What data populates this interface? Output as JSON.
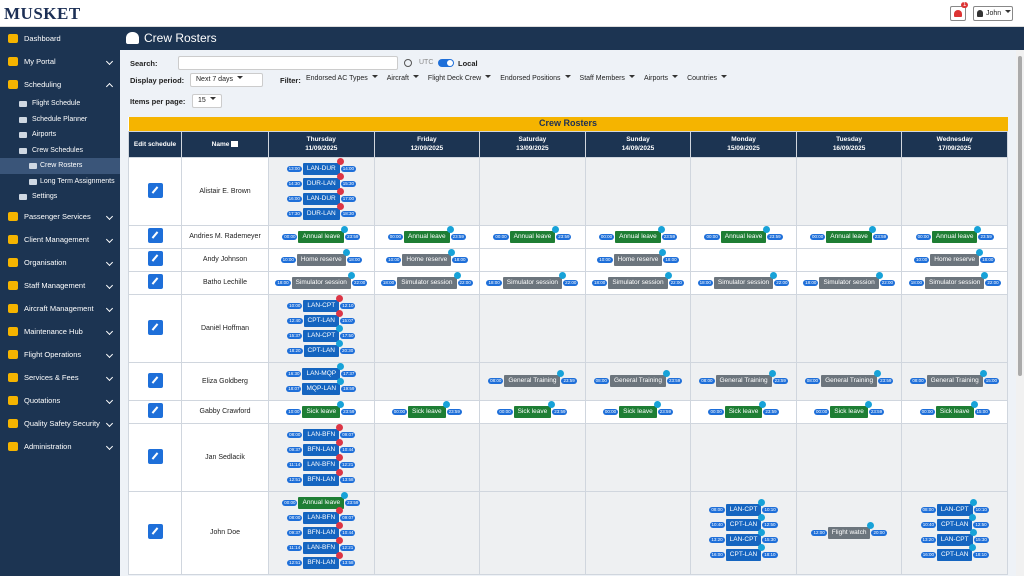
{
  "header": {
    "logo": "MUSKET",
    "notifications": "1",
    "user": "John"
  },
  "sidebar": [
    {
      "label": "Dashboard"
    },
    {
      "label": "My Portal",
      "expanded": false
    },
    {
      "label": "Scheduling",
      "expanded": true,
      "children": [
        {
          "label": "Flight Schedule"
        },
        {
          "label": "Schedule Planner"
        },
        {
          "label": "Airports"
        },
        {
          "label": "Crew Schedules",
          "expanded": true,
          "children": [
            {
              "label": "Crew Rosters",
              "active": true
            },
            {
              "label": "Long Term Assignments"
            }
          ]
        },
        {
          "label": "Settings"
        }
      ]
    },
    {
      "label": "Passenger Services",
      "expanded": false
    },
    {
      "label": "Client Management",
      "expanded": false
    },
    {
      "label": "Organisation",
      "expanded": false
    },
    {
      "label": "Staff Management",
      "expanded": false
    },
    {
      "label": "Aircraft Management",
      "expanded": false
    },
    {
      "label": "Maintenance Hub",
      "expanded": false
    },
    {
      "label": "Flight Operations",
      "expanded": false
    },
    {
      "label": "Services & Fees",
      "expanded": false
    },
    {
      "label": "Quotations",
      "expanded": false
    },
    {
      "label": "Quality Safety Security",
      "expanded": false
    },
    {
      "label": "Administration",
      "expanded": false
    }
  ],
  "page_title": "Crew Rosters",
  "toolbar": {
    "search_label": "Search:",
    "utc": "UTC",
    "local": "Local",
    "period_label": "Display period:",
    "period": "Next 7 days",
    "filter_label": "Filter:",
    "filters": [
      "Endorsed AC Types",
      "Aircraft",
      "Flight Deck Crew",
      "Endorsed Positions",
      "Staff Members",
      "Airports",
      "Countries"
    ],
    "items_label": "Items per page:",
    "items": "15"
  },
  "table": {
    "title": "Crew Rosters",
    "edit_header": "Edit schedule",
    "name_header": "Name",
    "days": [
      {
        "day": "Thursday",
        "date": "11/09/2025"
      },
      {
        "day": "Friday",
        "date": "12/09/2025"
      },
      {
        "day": "Saturday",
        "date": "13/09/2025"
      },
      {
        "day": "Sunday",
        "date": "14/09/2025"
      },
      {
        "day": "Monday",
        "date": "15/09/2025"
      },
      {
        "day": "Tuesday",
        "date": "16/09/2025"
      },
      {
        "day": "Wednesday",
        "date": "17/09/2025"
      }
    ],
    "rows": [
      {
        "name": "Alistair E. Brown",
        "days": [
          [
            {
              "label": "LAN-DUR",
              "start": "13:00",
              "end": "14:00",
              "color": "#1565c0",
              "dot": "#dc3545"
            },
            {
              "label": "DUR-LAN",
              "start": "14:30",
              "end": "15:30",
              "color": "#1565c0",
              "dot": "#dc3545"
            },
            {
              "label": "LAN-DUR",
              "start": "16:00",
              "end": "17:00",
              "color": "#1565c0",
              "dot": "#dc3545"
            },
            {
              "label": "DUR-LAN",
              "start": "17:30",
              "end": "18:30",
              "color": "#1565c0",
              "dot": "#dc3545"
            }
          ],
          [],
          [],
          [],
          [],
          [],
          []
        ]
      },
      {
        "name": "Andries M. Rademeyer",
        "days": [
          [
            {
              "label": "Annual leave",
              "start": "00:00",
              "end": "23:59",
              "color": "#1e7e34",
              "dot": "#17a2d8"
            }
          ],
          [
            {
              "label": "Annual leave",
              "start": "00:00",
              "end": "23:59",
              "color": "#1e7e34",
              "dot": "#17a2d8"
            }
          ],
          [
            {
              "label": "Annual leave",
              "start": "00:00",
              "end": "23:59",
              "color": "#1e7e34",
              "dot": "#17a2d8"
            }
          ],
          [
            {
              "label": "Annual leave",
              "start": "00:00",
              "end": "23:59",
              "color": "#1e7e34",
              "dot": "#17a2d8"
            }
          ],
          [
            {
              "label": "Annual leave",
              "start": "00:00",
              "end": "23:59",
              "color": "#1e7e34",
              "dot": "#17a2d8"
            }
          ],
          [
            {
              "label": "Annual leave",
              "start": "00:00",
              "end": "23:59",
              "color": "#1e7e34",
              "dot": "#17a2d8"
            }
          ],
          [
            {
              "label": "Annual leave",
              "start": "00:00",
              "end": "23:59",
              "color": "#1e7e34",
              "dot": "#17a2d8"
            }
          ]
        ]
      },
      {
        "name": "Andy Johnson",
        "days": [
          [
            {
              "label": "Home reserve",
              "start": "10:00",
              "end": "18:00",
              "color": "#6c757d",
              "dot": "#17a2d8"
            }
          ],
          [
            {
              "label": "Home reserve",
              "start": "10:00",
              "end": "18:00",
              "color": "#6c757d",
              "dot": "#17a2d8"
            }
          ],
          [],
          [
            {
              "label": "Home reserve",
              "start": "10:00",
              "end": "18:00",
              "color": "#6c757d",
              "dot": "#17a2d8"
            }
          ],
          [],
          [],
          [
            {
              "label": "Home reserve",
              "start": "10:00",
              "end": "18:00",
              "color": "#6c757d",
              "dot": "#17a2d8"
            }
          ]
        ]
      },
      {
        "name": "Batho Lechille",
        "days": [
          [
            {
              "label": "Simulator session",
              "start": "18:00",
              "end": "22:00",
              "color": "#6c757d",
              "dot": "#17a2d8"
            }
          ],
          [
            {
              "label": "Simulator session",
              "start": "18:00",
              "end": "22:00",
              "color": "#6c757d",
              "dot": "#17a2d8"
            }
          ],
          [
            {
              "label": "Simulator session",
              "start": "18:00",
              "end": "22:00",
              "color": "#6c757d",
              "dot": "#17a2d8"
            }
          ],
          [
            {
              "label": "Simulator session",
              "start": "18:00",
              "end": "22:00",
              "color": "#6c757d",
              "dot": "#17a2d8"
            }
          ],
          [
            {
              "label": "Simulator session",
              "start": "18:00",
              "end": "22:00",
              "color": "#6c757d",
              "dot": "#17a2d8"
            }
          ],
          [
            {
              "label": "Simulator session",
              "start": "18:00",
              "end": "22:00",
              "color": "#6c757d",
              "dot": "#17a2d8"
            }
          ],
          [
            {
              "label": "Simulator session",
              "start": "18:00",
              "end": "22:00",
              "color": "#6c757d",
              "dot": "#17a2d8"
            }
          ]
        ]
      },
      {
        "name": "Daniël Hoffman",
        "days": [
          [
            {
              "label": "LAN-CPT",
              "start": "10:00",
              "end": "12:10",
              "color": "#1565c0",
              "dot": "#dc3545"
            },
            {
              "label": "CPT-LAN",
              "start": "12:40",
              "end": "15:07",
              "color": "#1565c0",
              "dot": "#dc3545"
            },
            {
              "label": "LAN-CPT",
              "start": "15:37",
              "end": "17:50",
              "color": "#1565c0",
              "dot": "#17a2d8"
            },
            {
              "label": "CPT-LAN",
              "start": "18:20",
              "end": "20:30",
              "color": "#1565c0",
              "dot": "#17a2d8"
            }
          ],
          [],
          [],
          [],
          [],
          [],
          []
        ]
      },
      {
        "name": "Eliza Goldberg",
        "days": [
          [
            {
              "label": "LAN-MQP",
              "start": "16:30",
              "end": "17:37",
              "color": "#1565c0",
              "dot": "#17a2d8"
            },
            {
              "label": "MQP-LAN",
              "start": "18:07",
              "end": "19:59",
              "color": "#1565c0",
              "dot": "#17a2d8"
            }
          ],
          [],
          [
            {
              "label": "General Training",
              "start": "08:00",
              "end": "23:59",
              "color": "#6c757d",
              "dot": "#17a2d8"
            }
          ],
          [
            {
              "label": "General Training",
              "start": "08:00",
              "end": "23:59",
              "color": "#6c757d",
              "dot": "#17a2d8"
            }
          ],
          [
            {
              "label": "General Training",
              "start": "08:00",
              "end": "23:59",
              "color": "#6c757d",
              "dot": "#17a2d8"
            }
          ],
          [
            {
              "label": "General Training",
              "start": "08:00",
              "end": "23:59",
              "color": "#6c757d",
              "dot": "#17a2d8"
            }
          ],
          [
            {
              "label": "General Training",
              "start": "08:00",
              "end": "15:00",
              "color": "#6c757d",
              "dot": "#17a2d8"
            }
          ]
        ]
      },
      {
        "name": "Gabby Crawford",
        "days": [
          [
            {
              "label": "Sick leave",
              "start": "10:00",
              "end": "23:59",
              "color": "#1e7e34",
              "dot": "#17a2d8"
            }
          ],
          [
            {
              "label": "Sick leave",
              "start": "00:00",
              "end": "23:59",
              "color": "#1e7e34",
              "dot": "#17a2d8"
            }
          ],
          [
            {
              "label": "Sick leave",
              "start": "00:00",
              "end": "23:59",
              "color": "#1e7e34",
              "dot": "#17a2d8"
            }
          ],
          [
            {
              "label": "Sick leave",
              "start": "00:00",
              "end": "23:59",
              "color": "#1e7e34",
              "dot": "#17a2d8"
            }
          ],
          [
            {
              "label": "Sick leave",
              "start": "00:00",
              "end": "23:59",
              "color": "#1e7e34",
              "dot": "#17a2d8"
            }
          ],
          [
            {
              "label": "Sick leave",
              "start": "00:00",
              "end": "23:59",
              "color": "#1e7e34",
              "dot": "#17a2d8"
            }
          ],
          [
            {
              "label": "Sick leave",
              "start": "00:00",
              "end": "15:00",
              "color": "#1e7e34",
              "dot": "#17a2d8"
            }
          ]
        ]
      },
      {
        "name": "Jan Sedlacik",
        "days": [
          [
            {
              "label": "LAN-BFN",
              "start": "08:00",
              "end": "09:07",
              "color": "#1565c0",
              "dot": "#dc3545"
            },
            {
              "label": "BFN-LAN",
              "start": "09:37",
              "end": "10:44",
              "color": "#1565c0",
              "dot": "#dc3545"
            },
            {
              "label": "LAN-BFN",
              "start": "11:14",
              "end": "12:21",
              "color": "#1565c0",
              "dot": "#dc3545"
            },
            {
              "label": "BFN-LAN",
              "start": "12:51",
              "end": "13:58",
              "color": "#1565c0",
              "dot": "#dc3545"
            }
          ],
          [],
          [],
          [],
          [],
          [],
          []
        ]
      },
      {
        "name": "John Doe",
        "days": [
          [
            {
              "label": "Annual leave",
              "start": "00:00",
              "end": "23:59",
              "color": "#1e7e34",
              "dot": "#17a2d8"
            },
            {
              "label": "LAN-BFN",
              "start": "08:00",
              "end": "09:07",
              "color": "#1565c0",
              "dot": "#dc3545"
            },
            {
              "label": "BFN-LAN",
              "start": "09:37",
              "end": "10:44",
              "color": "#1565c0",
              "dot": "#dc3545"
            },
            {
              "label": "LAN-BFN",
              "start": "11:14",
              "end": "12:21",
              "color": "#1565c0",
              "dot": "#dc3545"
            },
            {
              "label": "BFN-LAN",
              "start": "12:51",
              "end": "13:58",
              "color": "#1565c0",
              "dot": "#dc3545"
            }
          ],
          [],
          [],
          [],
          [
            {
              "label": "LAN-CPT",
              "start": "08:00",
              "end": "10:10",
              "color": "#1565c0",
              "dot": "#17a2d8"
            },
            {
              "label": "CPT-LAN",
              "start": "10:40",
              "end": "12:50",
              "color": "#1565c0",
              "dot": "#17a2d8"
            },
            {
              "label": "LAN-CPT",
              "start": "13:20",
              "end": "15:30",
              "color": "#1565c0",
              "dot": "#17a2d8"
            },
            {
              "label": "CPT-LAN",
              "start": "16:00",
              "end": "18:10",
              "color": "#1565c0",
              "dot": "#17a2d8"
            }
          ],
          [
            {
              "label": "Flight watch",
              "start": "12:00",
              "end": "20:00",
              "color": "#6c757d",
              "dot": "#17a2d8"
            }
          ],
          [
            {
              "label": "LAN-CPT",
              "start": "08:00",
              "end": "10:10",
              "color": "#1565c0",
              "dot": "#17a2d8"
            },
            {
              "label": "CPT-LAN",
              "start": "10:40",
              "end": "12:50",
              "color": "#1565c0",
              "dot": "#17a2d8"
            },
            {
              "label": "LAN-CPT",
              "start": "13:20",
              "end": "15:30",
              "color": "#1565c0",
              "dot": "#17a2d8"
            },
            {
              "label": "CPT-LAN",
              "start": "16:00",
              "end": "18:10",
              "color": "#1565c0",
              "dot": "#17a2d8"
            }
          ]
        ]
      }
    ]
  }
}
